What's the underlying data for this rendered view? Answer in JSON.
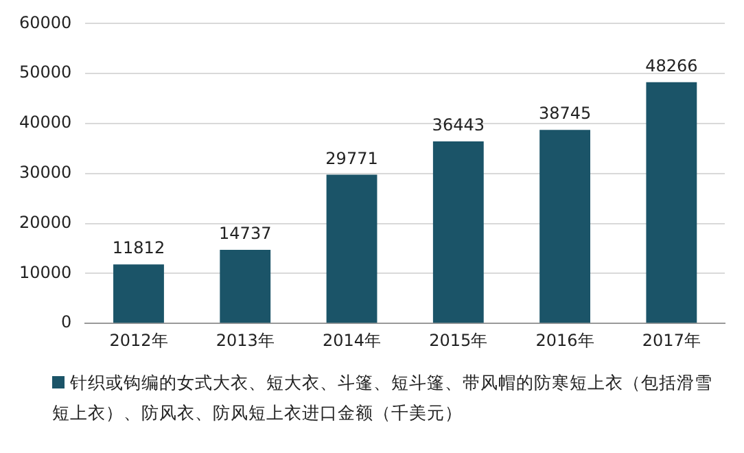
{
  "chart_data": {
    "type": "bar",
    "categories": [
      "2012年",
      "2013年",
      "2014年",
      "2015年",
      "2016年",
      "2017年"
    ],
    "series": [
      {
        "name": "针织或钩编的女式大衣、短大衣、斗篷、短斗篷、带风帽的防寒短上衣（包括滑雪短上衣）、防风衣、防风短上衣进口金额（千美元）",
        "color": "#1b5468",
        "values": [
          11812,
          14737,
          29771,
          36443,
          38745,
          48266
        ]
      }
    ],
    "ylim": [
      0,
      60000
    ],
    "yticks": [
      0,
      10000,
      20000,
      30000,
      40000,
      50000,
      60000
    ],
    "grid": "y",
    "legend": "bottom",
    "data_labels": true
  }
}
